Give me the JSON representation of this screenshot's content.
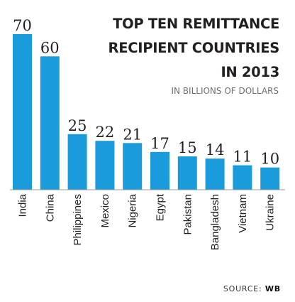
{
  "title_lines": [
    "TOP TEN REMITTANCE",
    "RECIPIENT COUNTRIES",
    "IN 2013"
  ],
  "subtitle": "IN BILLIONS OF DOLLARS",
  "source": {
    "label": "SOURCE:",
    "value": "WB"
  },
  "colors": {
    "bar": "#1a9bdb",
    "text": "#231f20",
    "baseline": "#9a9a9a"
  },
  "chart_data": {
    "type": "bar",
    "title": "TOP TEN REMITTANCE RECIPIENT COUNTRIES IN 2013",
    "subtitle": "IN BILLIONS OF DOLLARS",
    "categories": [
      "India",
      "China",
      "Philippines",
      "Mexico",
      "Nigeria",
      "Egypt",
      "Pakistan",
      "Bangladesh",
      "Vietnam",
      "Ukraine"
    ],
    "values": [
      70,
      60,
      25,
      22,
      21,
      17,
      15,
      14,
      11,
      10
    ],
    "ylim": [
      0,
      70
    ],
    "grid": false,
    "orientation": "vertical",
    "category_label_rotation": -90
  }
}
